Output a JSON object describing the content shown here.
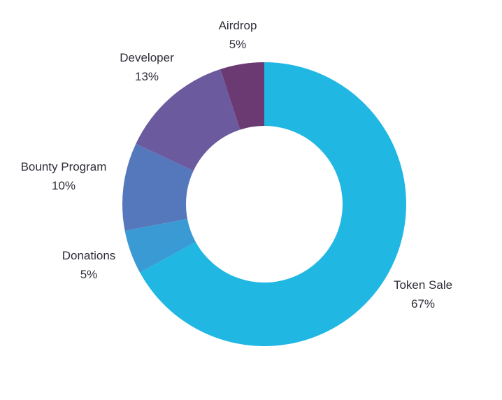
{
  "chart_data": {
    "type": "pie",
    "style": "donut",
    "title": "",
    "slices": [
      {
        "label": "Token Sale",
        "value": 67,
        "value_label": "67%",
        "color": "#20B7E3"
      },
      {
        "label": "Donations",
        "value": 5,
        "value_label": "5%",
        "color": "#3A9AD4"
      },
      {
        "label": "Bounty Program",
        "value": 10,
        "value_label": "10%",
        "color": "#5578BD"
      },
      {
        "label": "Developer",
        "value": 13,
        "value_label": "13%",
        "color": "#6C5A9E"
      },
      {
        "label": "Airdrop",
        "value": 5,
        "value_label": "5%",
        "color": "#6B3A73"
      }
    ],
    "start_angle": "12 o'clock",
    "direction": "clockwise",
    "legend": "none",
    "labels_position": "outside"
  }
}
